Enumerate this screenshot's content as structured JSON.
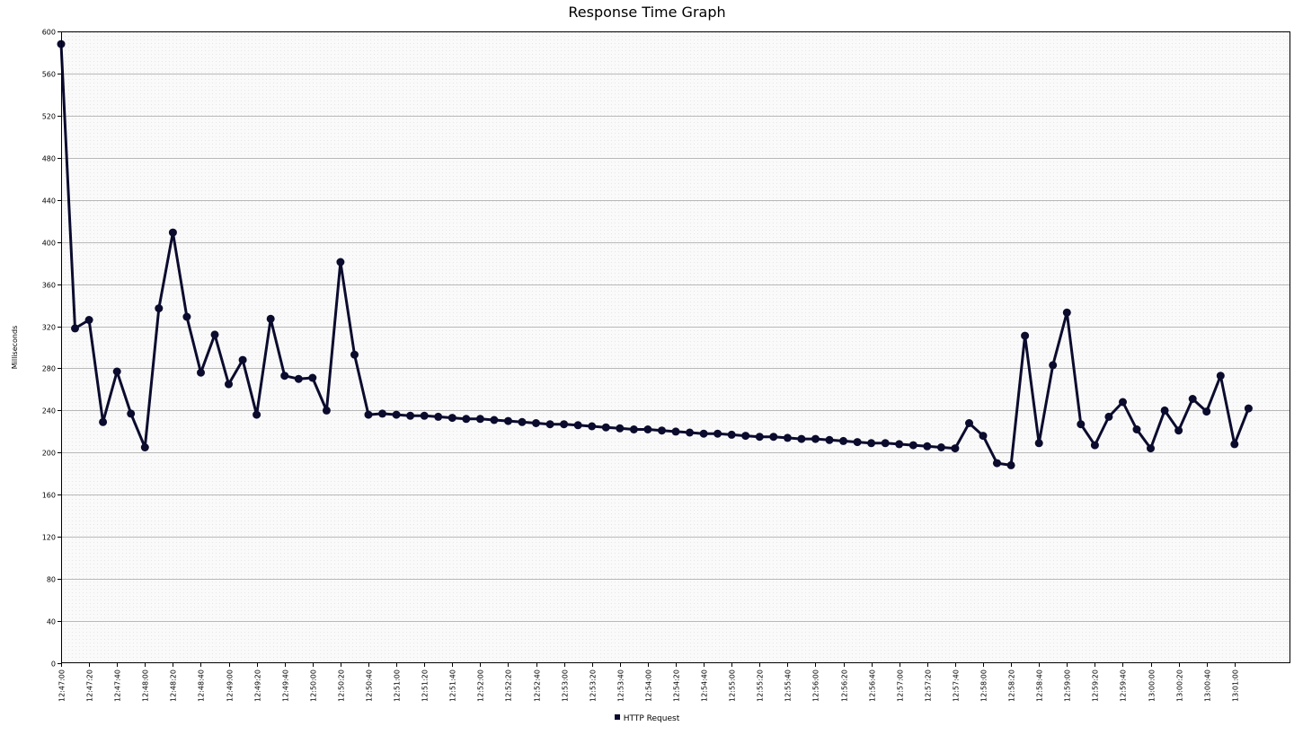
{
  "chart_data": {
    "type": "line",
    "title": "Response Time Graph",
    "xlabel": "",
    "ylabel": "Milliseconds",
    "ylim": [
      0,
      600
    ],
    "yticks": [
      0,
      40,
      80,
      120,
      160,
      200,
      240,
      280,
      320,
      360,
      400,
      440,
      480,
      520,
      560,
      600
    ],
    "xlim": [
      "12:47:00",
      "13:01:40"
    ],
    "xtick_labels": [
      "12:47:00",
      "12:47:20",
      "12:47:40",
      "12:48:00",
      "12:48:20",
      "12:48:40",
      "12:49:00",
      "12:49:20",
      "12:49:40",
      "12:50:00",
      "12:50:20",
      "12:50:40",
      "12:51:00",
      "12:51:20",
      "12:51:40",
      "12:52:00",
      "12:52:20",
      "12:52:40",
      "12:53:00",
      "12:53:20",
      "12:53:40",
      "12:54:00",
      "12:54:20",
      "12:54:40",
      "12:55:00",
      "12:55:20",
      "12:55:40",
      "12:56:00",
      "12:56:20",
      "12:56:40",
      "12:57:00",
      "12:57:20",
      "12:57:40",
      "12:58:00",
      "12:58:20",
      "12:58:40",
      "12:59:00",
      "12:59:20",
      "12:59:40",
      "13:00:00",
      "13:00:20",
      "13:00:40",
      "13:01:00"
    ],
    "x": [
      "12:47:00",
      "12:47:10",
      "12:47:20",
      "12:47:30",
      "12:47:40",
      "12:47:50",
      "12:48:00",
      "12:48:10",
      "12:48:20",
      "12:48:30",
      "12:48:40",
      "12:48:50",
      "12:49:00",
      "12:49:10",
      "12:49:20",
      "12:49:30",
      "12:49:40",
      "12:49:50",
      "12:50:00",
      "12:50:10",
      "12:50:20",
      "12:50:30",
      "12:50:40",
      "12:50:50",
      "12:51:00",
      "12:51:10",
      "12:51:20",
      "12:51:30",
      "12:51:40",
      "12:51:50",
      "12:52:00",
      "12:52:10",
      "12:52:20",
      "12:52:30",
      "12:52:40",
      "12:52:50",
      "12:53:00",
      "12:53:10",
      "12:53:20",
      "12:53:30",
      "12:53:40",
      "12:53:50",
      "12:54:00",
      "12:54:10",
      "12:54:20",
      "12:54:30",
      "12:54:40",
      "12:54:50",
      "12:55:00",
      "12:55:10",
      "12:55:20",
      "12:55:30",
      "12:55:40",
      "12:55:50",
      "12:56:00",
      "12:56:10",
      "12:56:20",
      "12:56:30",
      "12:56:40",
      "12:56:50",
      "12:57:00",
      "12:57:10",
      "12:57:20",
      "12:57:30",
      "12:57:40",
      "12:57:50",
      "12:58:00",
      "12:58:10",
      "12:58:20",
      "12:58:30",
      "12:58:40",
      "12:58:50",
      "12:59:00",
      "12:59:10",
      "12:59:20",
      "12:59:30",
      "12:59:40",
      "12:59:50",
      "13:00:00",
      "13:00:10",
      "13:00:20",
      "13:00:30",
      "13:00:40",
      "13:00:50",
      "13:01:00",
      "13:01:10"
    ],
    "series": [
      {
        "name": "HTTP Request",
        "color": "#0b0b2e",
        "values": [
          588,
          318,
          326,
          229,
          277,
          237,
          205,
          337,
          409,
          329,
          276,
          312,
          265,
          288,
          236,
          327,
          273,
          270,
          271,
          240,
          381,
          293,
          236,
          237,
          236,
          235,
          235,
          234,
          233,
          232,
          232,
          231,
          230,
          229,
          228,
          227,
          227,
          226,
          225,
          224,
          223,
          222,
          222,
          221,
          220,
          219,
          218,
          218,
          217,
          216,
          215,
          215,
          214,
          213,
          213,
          212,
          211,
          210,
          209,
          209,
          208,
          207,
          206,
          205,
          204,
          228,
          216,
          190,
          188,
          311,
          209,
          283,
          333,
          227,
          207,
          234,
          248,
          222,
          204,
          240,
          221,
          251,
          239,
          273,
          208,
          242
        ]
      }
    ],
    "grid": true,
    "legend_position": "bottom-center"
  }
}
